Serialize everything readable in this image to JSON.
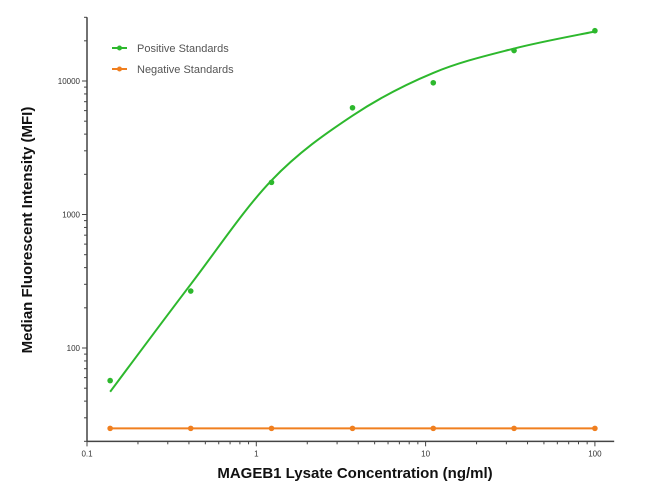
{
  "chart_data": {
    "type": "scatter",
    "title": "",
    "xlabel": "MAGEB1 Lysate Concentration (ng/ml)",
    "ylabel": "Median  Fluorescent Intensity  (MFI)",
    "x_scale": "log",
    "y_scale": "log",
    "xlim": [
      0.1,
      130
    ],
    "ylim": [
      20,
      30000
    ],
    "x_ticks": [
      "0.1",
      "1",
      "10",
      "100"
    ],
    "y_ticks": [
      "100",
      "1000",
      "10000"
    ],
    "grid": false,
    "legend_position": "top-left",
    "x": [
      0.137,
      0.41,
      1.23,
      3.7,
      11.1,
      33.3,
      100
    ],
    "series": [
      {
        "name": "Positive Standards",
        "color": "#2db82d",
        "values": [
          57,
          267,
          1740,
          6300,
          9700,
          16900,
          23800
        ],
        "fit": "smooth curve"
      },
      {
        "name": "Negative Standards",
        "color": "#f07f1f",
        "values": [
          25,
          25,
          25,
          25,
          25,
          25,
          25
        ],
        "fit": "line"
      }
    ]
  }
}
